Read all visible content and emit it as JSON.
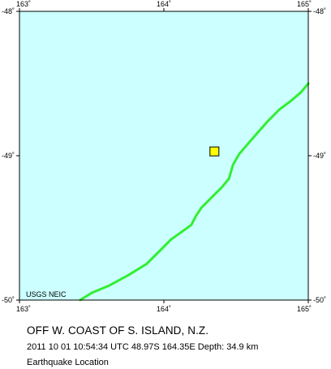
{
  "map": {
    "lon_ticks": [
      {
        "value": 163,
        "label": "163˚"
      },
      {
        "value": 164,
        "label": "164˚"
      },
      {
        "value": 165,
        "label": "165˚"
      }
    ],
    "lat_ticks": [
      {
        "value": -48,
        "label": "-48˚"
      },
      {
        "value": -49,
        "label": "-49˚"
      },
      {
        "value": -50,
        "label": "-50˚"
      }
    ],
    "lon_range": [
      163,
      165
    ],
    "lat_range": [
      -50,
      -48
    ],
    "credit": "USGS NEIC",
    "colors": {
      "ocean": "#ccffff",
      "plate_boundary": "#33ee33",
      "epicenter_fill": "#ffff00",
      "frame": "#000000"
    },
    "plate_boundary_path": [
      [
        163.42,
        -50.0
      ],
      [
        163.5,
        -49.95
      ],
      [
        163.62,
        -49.9
      ],
      [
        163.75,
        -49.83
      ],
      [
        163.88,
        -49.75
      ],
      [
        163.97,
        -49.66
      ],
      [
        164.05,
        -49.58
      ],
      [
        164.12,
        -49.53
      ],
      [
        164.19,
        -49.48
      ],
      [
        164.22,
        -49.42
      ],
      [
        164.26,
        -49.36
      ],
      [
        164.33,
        -49.29
      ],
      [
        164.4,
        -49.22
      ],
      [
        164.45,
        -49.16
      ],
      [
        164.48,
        -49.06
      ],
      [
        164.52,
        -48.99
      ],
      [
        164.58,
        -48.92
      ],
      [
        164.65,
        -48.84
      ],
      [
        164.72,
        -48.76
      ],
      [
        164.8,
        -48.68
      ],
      [
        164.88,
        -48.62
      ],
      [
        164.95,
        -48.56
      ],
      [
        165.0,
        -48.5
      ]
    ],
    "epicenter": {
      "lon": 164.35,
      "lat": -48.97
    }
  },
  "caption": {
    "region": "OFF W. COAST OF S. ISLAND, N.Z.",
    "details": "2011 10 01 10:54:34 UTC 48.97S 164.35E Depth: 34.9 km",
    "kind": "Earthquake Location"
  }
}
